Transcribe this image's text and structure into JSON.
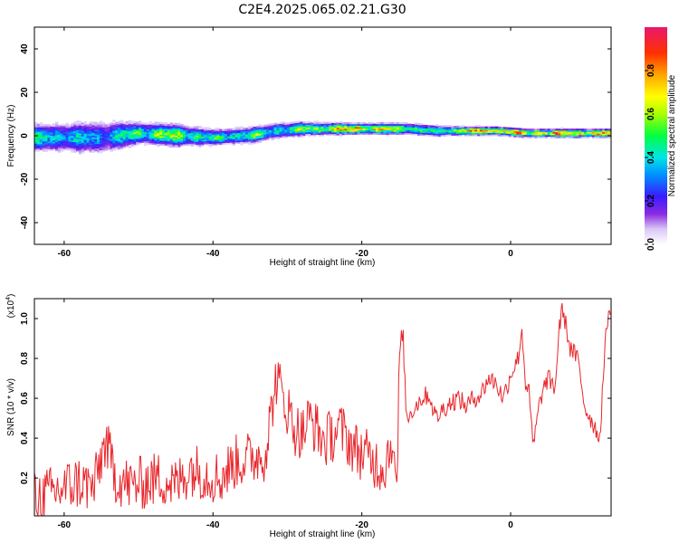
{
  "title": "C2E4.2025.065.02.21.G30",
  "chart_data": [
    {
      "type": "heatmap",
      "xlabel": "Height of straight line (km)",
      "ylabel": "Frequency (Hz)",
      "xlim": [
        -64,
        13.5
      ],
      "ylim": [
        -50,
        50
      ],
      "x_ticks": [
        "-60",
        "-40",
        "-20",
        "0"
      ],
      "x_tick_values": [
        -60,
        -40,
        -20,
        0
      ],
      "y_ticks": [
        "40",
        "20",
        "0",
        "-20",
        "-40"
      ],
      "y_tick_values": [
        40,
        20,
        0,
        -20,
        -40
      ],
      "colorbar": {
        "label": "Normalized spectral amplitude",
        "ticks": [
          "0.0",
          "0.2",
          "0.4",
          "0.6",
          "0.8"
        ],
        "tick_values": [
          0.0,
          0.2,
          0.4,
          0.6,
          0.8
        ],
        "range": [
          0,
          1
        ]
      },
      "band": {
        "x": [
          -63,
          -55,
          -50,
          -45,
          -40,
          -35,
          -32,
          -28,
          -22,
          -18,
          -14,
          -10,
          -6,
          -2,
          2,
          6,
          10,
          13
        ],
        "center_hz": [
          -1,
          -1,
          1,
          0,
          -1,
          0,
          2,
          3,
          3,
          3,
          3,
          2,
          2,
          2,
          1,
          1,
          1,
          1
        ],
        "halfwidth_hz": [
          5,
          6,
          4,
          4,
          3,
          3,
          3,
          2.5,
          2,
          2,
          2,
          2,
          1.5,
          1.5,
          1.5,
          1.5,
          1.5,
          1.5
        ],
        "peak_amplitude": [
          0.5,
          0.4,
          0.6,
          0.7,
          0.5,
          0.6,
          0.5,
          0.65,
          0.9,
          0.85,
          0.7,
          0.5,
          0.95,
          0.95,
          0.8,
          0.95,
          0.9,
          0.9
        ]
      }
    },
    {
      "type": "line",
      "xlabel": "Height of straight line (km)",
      "ylabel": "SNR (10 * v/v)",
      "y_multiplier": "(x10",
      "y_multiplier_exp": "4",
      "y_multiplier_close": ")",
      "xlim": [
        -64,
        13.5
      ],
      "ylim": [
        0.01,
        1.1
      ],
      "x_ticks": [
        "-60",
        "-40",
        "-20",
        "0"
      ],
      "x_tick_values": [
        -60,
        -40,
        -20,
        0
      ],
      "y_ticks": [
        "0.2",
        "0.4",
        "0.6",
        "0.8",
        "1.0"
      ],
      "y_tick_values": [
        0.2,
        0.4,
        0.6,
        0.8,
        1.0
      ],
      "series": [
        {
          "color": "#e8262b",
          "x": [
            -64,
            -62,
            -60,
            -58,
            -56,
            -54.5,
            -53,
            -51,
            -49,
            -47,
            -45,
            -43,
            -41,
            -39,
            -37,
            -35,
            -33,
            -31.5,
            -30,
            -29,
            -28,
            -27,
            -25,
            -23,
            -21,
            -19,
            -17,
            -16,
            -15.2,
            -15,
            -14.5,
            -14,
            -13,
            -12,
            -11,
            -10,
            -9,
            -8,
            -7,
            -6,
            -5,
            -4,
            -3,
            -2,
            -1,
            0,
            1,
            1.5,
            2,
            2.5,
            3,
            4,
            5,
            6,
            6.5,
            7,
            8,
            9,
            10,
            11,
            12,
            12.5,
            13,
            13.5
          ],
          "y": [
            0.1,
            0.12,
            0.15,
            0.18,
            0.15,
            0.38,
            0.2,
            0.16,
            0.18,
            0.2,
            0.16,
            0.25,
            0.22,
            0.2,
            0.28,
            0.3,
            0.32,
            0.7,
            0.55,
            0.45,
            0.42,
            0.5,
            0.38,
            0.45,
            0.35,
            0.3,
            0.25,
            0.4,
            0.15,
            0.8,
            0.95,
            0.5,
            0.55,
            0.6,
            0.62,
            0.5,
            0.55,
            0.58,
            0.6,
            0.56,
            0.6,
            0.62,
            0.7,
            0.68,
            0.6,
            0.72,
            0.8,
            0.95,
            0.68,
            0.62,
            0.35,
            0.6,
            0.7,
            0.65,
            0.95,
            1.05,
            0.85,
            0.8,
            0.55,
            0.48,
            0.4,
            0.75,
            1.0,
            1.08
          ]
        }
      ]
    }
  ]
}
